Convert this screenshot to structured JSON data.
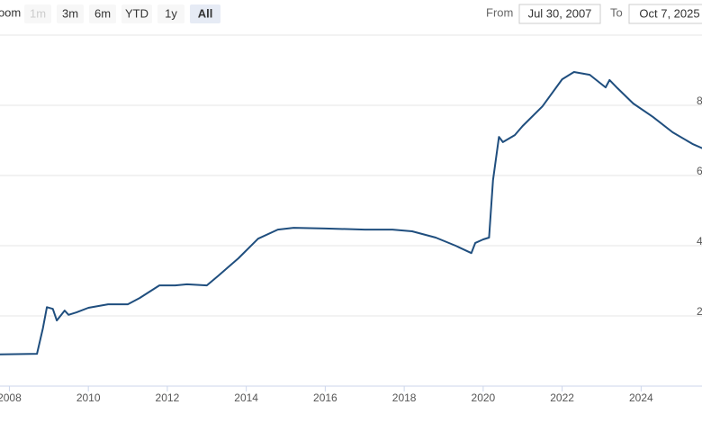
{
  "range_selector": {
    "label": "Zoom",
    "buttons": [
      {
        "label": "1m",
        "state": "disabled"
      },
      {
        "label": "3m",
        "state": "normal"
      },
      {
        "label": "6m",
        "state": "normal"
      },
      {
        "label": "YTD",
        "state": "normal"
      },
      {
        "label": "1y",
        "state": "normal"
      },
      {
        "label": "All",
        "state": "selected"
      }
    ]
  },
  "date_range": {
    "from_label": "From",
    "from": "Jul 30, 2007",
    "to_label": "To",
    "to": "Oct 7, 2025"
  },
  "chart_data": {
    "type": "line",
    "x": [
      2007.58,
      2008.7,
      2008.85,
      2008.95,
      2009.1,
      2009.2,
      2009.4,
      2009.5,
      2009.7,
      2010.0,
      2010.5,
      2011.0,
      2011.3,
      2011.8,
      2012.2,
      2012.5,
      2013.0,
      2013.3,
      2013.8,
      2014.3,
      2014.8,
      2015.2,
      2016.0,
      2017.0,
      2017.7,
      2018.2,
      2018.8,
      2019.3,
      2019.7,
      2019.8,
      2020.0,
      2020.15,
      2020.25,
      2020.4,
      2020.5,
      2020.8,
      2021.0,
      2021.5,
      2022.0,
      2022.3,
      2022.7,
      2023.1,
      2023.2,
      2023.4,
      2023.8,
      2024.3,
      2024.8,
      2025.3,
      2025.77
    ],
    "series": [
      {
        "color": "#1f4e7e",
        "values": [
          0.9,
          0.92,
          1.65,
          2.25,
          2.2,
          1.87,
          2.15,
          2.03,
          2.1,
          2.23,
          2.33,
          2.33,
          2.51,
          2.87,
          2.87,
          2.9,
          2.87,
          3.15,
          3.64,
          4.2,
          4.46,
          4.51,
          4.49,
          4.46,
          4.46,
          4.41,
          4.23,
          4.0,
          3.79,
          4.08,
          4.18,
          4.23,
          5.87,
          7.1,
          6.95,
          7.15,
          7.41,
          7.97,
          8.74,
          8.95,
          8.87,
          8.51,
          8.72,
          8.49,
          8.05,
          7.67,
          7.23,
          6.9,
          6.67
        ]
      }
    ],
    "xlim": [
      2007.58,
      2025.77
    ],
    "xticks": [
      2008,
      2010,
      2012,
      2014,
      2016,
      2018,
      2020,
      2022,
      2024
    ],
    "ylim": [
      0,
      10
    ],
    "yticks": [
      2,
      4,
      6,
      8
    ],
    "grid": true
  }
}
